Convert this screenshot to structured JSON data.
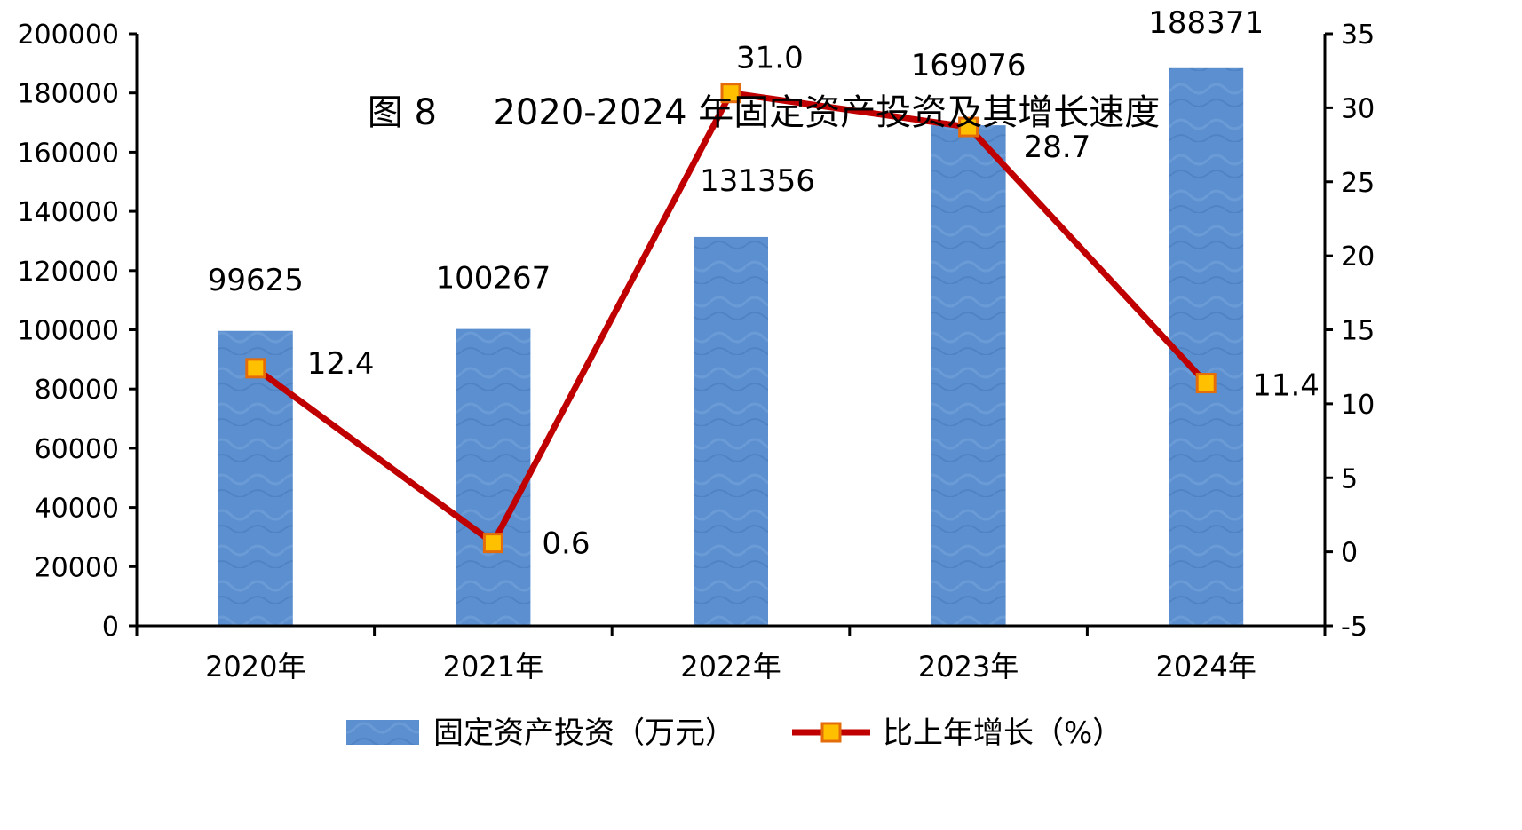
{
  "chart_data": {
    "type": "bar+line",
    "title": "图 8     2020-2024 年固定资产投资及其增长速度",
    "categories": [
      "2020年",
      "2021年",
      "2022年",
      "2023年",
      "2024年"
    ],
    "series": [
      {
        "name": "固定资产投资（万元）",
        "type": "bar",
        "axis": "left",
        "values": [
          99625,
          100267,
          131356,
          169076,
          188371
        ],
        "labels": [
          "99625",
          "100267",
          "131356",
          "169076",
          "188371"
        ],
        "color": "#5b8fcf"
      },
      {
        "name": "比上年增长（%）",
        "type": "line",
        "axis": "right",
        "values": [
          12.4,
          0.6,
          31.0,
          28.7,
          11.4
        ],
        "labels": [
          "12.4",
          "0.6",
          "31.0",
          "28.7",
          "11.4"
        ],
        "color": "#c00000",
        "marker_color": "#ffc000"
      }
    ],
    "y_left": {
      "min": 0,
      "max": 200000,
      "step": 20000,
      "ticks": [
        "0",
        "20000",
        "40000",
        "60000",
        "80000",
        "100000",
        "120000",
        "140000",
        "160000",
        "180000",
        "200000"
      ]
    },
    "y_right": {
      "min": -5,
      "max": 35,
      "step": 5,
      "ticks": [
        "-5",
        "0",
        "5",
        "10",
        "15",
        "20",
        "25",
        "30",
        "35"
      ]
    },
    "legend_position": "bottom",
    "grid": false
  }
}
